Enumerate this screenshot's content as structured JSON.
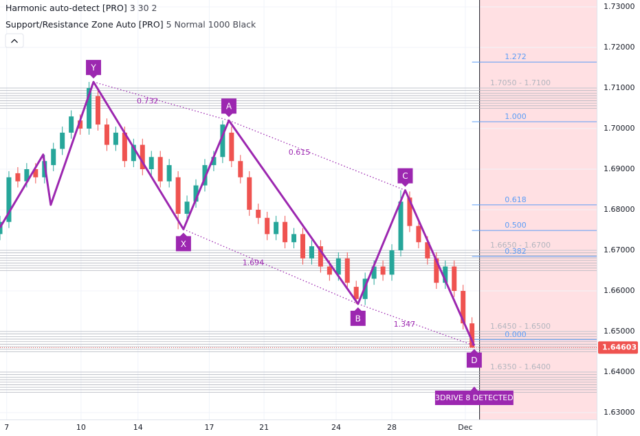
{
  "chart_data": {
    "type": "candlestick",
    "indicators": [
      {
        "name": "Harmonic auto-detect [PRO]",
        "params": "3 30 2"
      },
      {
        "name": "Support/Resistance Zone Auto [PRO]",
        "params": "5 Normal 1000 Black"
      }
    ],
    "xlim": [
      0,
      134
    ],
    "xticks": [
      {
        "value": 1.5,
        "label": "7"
      },
      {
        "value": 18.2,
        "label": "10"
      },
      {
        "value": 31,
        "label": "14"
      },
      {
        "value": 47,
        "label": "17"
      },
      {
        "value": 59.3,
        "label": "21"
      },
      {
        "value": 75.5,
        "label": "24"
      },
      {
        "value": 88,
        "label": "28"
      },
      {
        "value": 104.5,
        "label": "Dec"
      }
    ],
    "ylim": [
      1.63,
      1.73
    ],
    "yticks": [
      {
        "value": 1.63,
        "label": "1.63000"
      },
      {
        "value": 1.64,
        "label": "1.64000"
      },
      {
        "value": 1.65,
        "label": "1.65000"
      },
      {
        "value": 1.66,
        "label": "1.66000"
      },
      {
        "value": 1.67,
        "label": "1.67000"
      },
      {
        "value": 1.68,
        "label": "1.68000"
      },
      {
        "value": 1.69,
        "label": "1.69000"
      },
      {
        "value": 1.7,
        "label": "1.70000"
      },
      {
        "value": 1.71,
        "label": "1.71000"
      },
      {
        "value": 1.72,
        "label": "1.72000"
      },
      {
        "value": 1.73,
        "label": "1.73000"
      }
    ],
    "up_color": "#26a69a",
    "down_color": "#ef5350",
    "candles": {
      "x": [
        0,
        2,
        4,
        6,
        8,
        10,
        12,
        14,
        16,
        18,
        20,
        22,
        24,
        26,
        28,
        30,
        32,
        34,
        36,
        38,
        40,
        42,
        44,
        46,
        48,
        50,
        52,
        54,
        56,
        58,
        60,
        62,
        64,
        66,
        68,
        70,
        72,
        74,
        76,
        78,
        80,
        82,
        84,
        86,
        88,
        90,
        92,
        94,
        96,
        98,
        100,
        102,
        104,
        106
      ],
      "open": [
        1.674,
        1.677,
        1.689,
        1.687,
        1.69,
        1.688,
        1.691,
        1.695,
        1.699,
        1.702,
        1.7,
        1.708,
        1.701,
        1.696,
        1.699,
        1.692,
        1.696,
        1.69,
        1.693,
        1.687,
        1.688,
        1.679,
        1.682,
        1.686,
        1.691,
        1.693,
        1.699,
        1.692,
        1.688,
        1.68,
        1.678,
        1.674,
        1.677,
        1.672,
        1.674,
        1.668,
        1.671,
        1.666,
        1.664,
        1.668,
        1.661,
        1.658,
        1.663,
        1.666,
        1.664,
        1.67,
        1.683,
        1.676,
        1.672,
        1.668,
        1.662,
        1.666,
        1.66,
        1.652
      ],
      "high": [
        1.6785,
        1.6895,
        1.6905,
        1.6915,
        1.6915,
        1.6935,
        1.6965,
        1.7005,
        1.7045,
        1.7035,
        1.7115,
        1.7095,
        1.7025,
        1.7005,
        1.7005,
        1.6975,
        1.6975,
        1.6945,
        1.6945,
        1.6925,
        1.6895,
        1.6835,
        1.6875,
        1.6925,
        1.6945,
        1.702,
        1.7005,
        1.6935,
        1.6895,
        1.6815,
        1.6795,
        1.6785,
        1.6785,
        1.6755,
        1.6755,
        1.6725,
        1.6725,
        1.6675,
        1.6695,
        1.6695,
        1.6625,
        1.6645,
        1.6675,
        1.6675,
        1.6715,
        1.6848,
        1.6845,
        1.6775,
        1.6735,
        1.6695,
        1.6675,
        1.6675,
        1.6615,
        1.6535
      ],
      "low": [
        1.6725,
        1.6755,
        1.6855,
        1.6855,
        1.6865,
        1.6865,
        1.6895,
        1.6935,
        1.6975,
        1.6985,
        1.6985,
        1.6995,
        1.6945,
        1.6945,
        1.6905,
        1.6905,
        1.6885,
        1.6885,
        1.6855,
        1.6855,
        1.6752,
        1.6775,
        1.6805,
        1.6845,
        1.6895,
        1.6915,
        1.6905,
        1.6865,
        1.6785,
        1.6765,
        1.6725,
        1.6725,
        1.6705,
        1.6705,
        1.6665,
        1.6665,
        1.6645,
        1.6625,
        1.6625,
        1.6605,
        1.6568,
        1.6565,
        1.6615,
        1.6625,
        1.6625,
        1.6685,
        1.6745,
        1.6705,
        1.6665,
        1.6605,
        1.6605,
        1.6585,
        1.6505,
        1.6462
      ],
      "close": [
        1.677,
        1.688,
        1.687,
        1.69,
        1.688,
        1.692,
        1.695,
        1.699,
        1.703,
        1.7,
        1.71,
        1.701,
        1.696,
        1.699,
        1.692,
        1.696,
        1.69,
        1.693,
        1.687,
        1.691,
        1.679,
        1.682,
        1.686,
        1.691,
        1.693,
        1.701,
        1.692,
        1.688,
        1.68,
        1.678,
        1.674,
        1.677,
        1.672,
        1.674,
        1.668,
        1.671,
        1.666,
        1.664,
        1.668,
        1.662,
        1.658,
        1.663,
        1.666,
        1.664,
        1.67,
        1.682,
        1.676,
        1.672,
        1.668,
        1.662,
        1.666,
        1.66,
        1.652,
        1.646
      ]
    },
    "pattern": {
      "color": "#9c27b0",
      "x": [
        0,
        9.7,
        11.4,
        21,
        41.2,
        51.4,
        80.4,
        91,
        106.5
      ],
      "y": [
        1.6756,
        1.6936,
        1.6812,
        1.7115,
        1.6752,
        1.702,
        1.6568,
        1.6848,
        1.6465
      ],
      "labels": [
        null,
        null,
        null,
        "Y",
        "X",
        "A",
        "B",
        "C",
        "D"
      ]
    },
    "ratios": [
      {
        "label": "0.732",
        "x": [
          21,
          51.4
        ],
        "y": [
          1.7115,
          1.702
        ]
      },
      {
        "label": "0.615",
        "x": [
          51.4,
          91
        ],
        "y": [
          1.702,
          1.6848
        ]
      },
      {
        "label": "1.694",
        "x": [
          41.2,
          80.4
        ],
        "y": [
          1.6752,
          1.6568
        ]
      },
      {
        "label": "1.347",
        "x": [
          80.4,
          106.5
        ],
        "y": [
          1.6568,
          1.6465
        ]
      }
    ],
    "fib_levels": [
      {
        "label": "1.272",
        "value": 1.7164
      },
      {
        "label": "1.000",
        "value": 1.7017
      },
      {
        "label": "0.618",
        "value": 1.6812
      },
      {
        "label": "0.500",
        "value": 1.6749
      },
      {
        "label": "0.382",
        "value": 1.6685
      },
      {
        "label": "0.000",
        "value": 1.648
      }
    ],
    "fib_from": 106,
    "zones": [
      {
        "label": "1.7050 - 1.7100",
        "low": 1.705,
        "high": 1.71
      },
      {
        "label": "1.6650 - 1.6700",
        "low": 1.665,
        "high": 1.67
      },
      {
        "label": "1.6450 - 1.6500",
        "low": 1.645,
        "high": 1.65
      },
      {
        "label": "1.6350 - 1.6400",
        "low": 1.635,
        "high": 1.64
      }
    ],
    "highlight_from": 107.7,
    "last_price": {
      "value": 1.64603,
      "label": "1.64603"
    },
    "badge": "3DRIVE 8 DETECTED"
  }
}
